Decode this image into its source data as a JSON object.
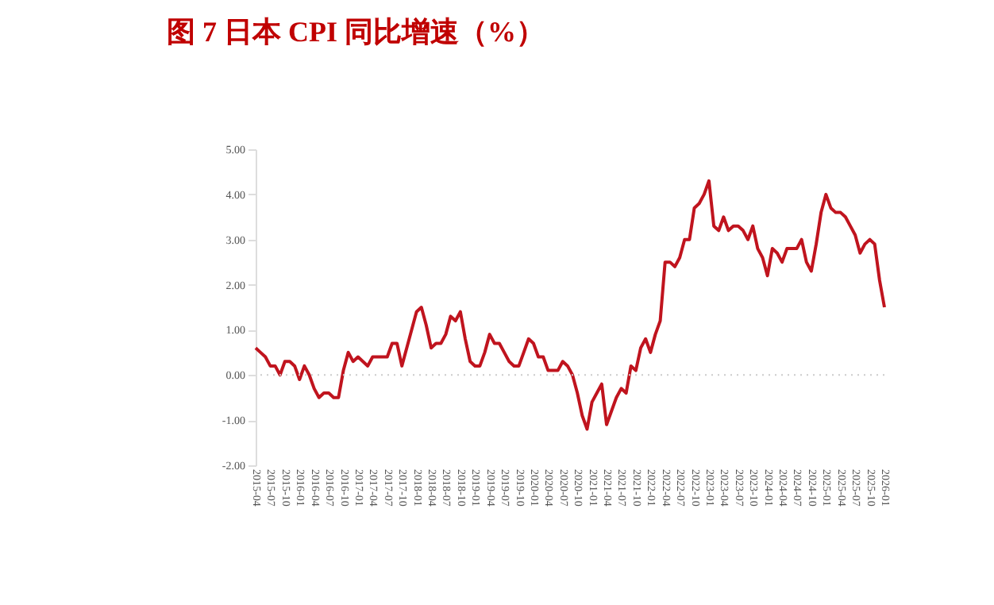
{
  "chart_data": {
    "type": "line",
    "title": "图 7  日本 CPI 同比增速（%）",
    "categories": [
      "2015-04",
      null,
      null,
      "2015-07",
      null,
      null,
      "2015-10",
      null,
      null,
      "2016-01",
      null,
      null,
      "2016-04",
      null,
      null,
      "2016-07",
      null,
      null,
      "2016-10",
      null,
      null,
      "2017-01",
      null,
      null,
      "2017-04",
      null,
      null,
      "2017-07",
      null,
      null,
      "2017-10",
      null,
      null,
      "2018-01",
      null,
      null,
      "2018-04",
      null,
      null,
      "2018-07",
      null,
      null,
      "2018-10",
      null,
      null,
      "2019-01",
      null,
      null,
      "2019-04",
      null,
      null,
      "2019-07",
      null,
      null,
      "2019-10",
      null,
      null,
      "2020-01",
      null,
      null,
      "2020-04",
      null,
      null,
      "2020-07",
      null,
      null,
      "2020-10",
      null,
      null,
      "2021-01",
      null,
      null,
      "2021-04",
      null,
      null,
      "2021-07",
      null,
      null,
      "2021-10",
      null,
      null,
      "2022-01",
      null,
      null,
      "2022-04",
      null,
      null,
      "2022-07",
      null,
      null,
      "2022-10",
      null,
      null,
      "2023-01",
      null,
      null,
      "2023-04",
      null,
      null,
      "2023-07",
      null,
      null,
      "2023-10",
      null,
      null,
      "2024-01",
      null,
      null,
      "2024-04",
      null,
      null,
      "2024-07",
      null,
      null,
      "2024-10",
      null,
      null,
      "2025-01",
      null,
      null,
      "2025-04",
      null,
      null,
      "2025-07",
      null,
      null,
      "2025-10",
      null,
      null,
      "2026-01"
    ],
    "series": [
      {
        "color": "#c0141e",
        "values": [
          0.6,
          0.5,
          0.4,
          0.2,
          0.2,
          0.0,
          0.3,
          0.3,
          0.2,
          -0.1,
          0.2,
          0.0,
          -0.3,
          -0.5,
          -0.4,
          -0.4,
          -0.5,
          -0.5,
          0.1,
          0.5,
          0.3,
          0.4,
          0.3,
          0.2,
          0.4,
          0.4,
          0.4,
          0.4,
          0.7,
          0.7,
          0.2,
          0.6,
          1.0,
          1.4,
          1.5,
          1.1,
          0.6,
          0.7,
          0.7,
          0.9,
          1.3,
          1.2,
          1.4,
          0.8,
          0.3,
          0.2,
          0.2,
          0.5,
          0.9,
          0.7,
          0.7,
          0.5,
          0.3,
          0.2,
          0.2,
          0.5,
          0.8,
          0.7,
          0.4,
          0.4,
          0.1,
          0.1,
          0.1,
          0.3,
          0.2,
          0.0,
          -0.4,
          -0.9,
          -1.2,
          -0.6,
          -0.4,
          -0.2,
          -1.1,
          -0.8,
          -0.5,
          -0.3,
          -0.4,
          0.2,
          0.1,
          0.6,
          0.8,
          0.5,
          0.9,
          1.2,
          2.5,
          2.5,
          2.4,
          2.6,
          3.0,
          3.0,
          3.7,
          3.8,
          4.0,
          4.3,
          3.3,
          3.2,
          3.5,
          3.2,
          3.3,
          3.3,
          3.2,
          3.0,
          3.3,
          2.8,
          2.6,
          2.2,
          2.8,
          2.7,
          2.5,
          2.8,
          2.8,
          2.8,
          3.0,
          2.5,
          2.3,
          2.9,
          3.6,
          4.0,
          3.7,
          3.6,
          3.6,
          3.5,
          3.3,
          3.1,
          2.7,
          2.9,
          3.0,
          2.9,
          2.1,
          1.5
        ]
      }
    ],
    "ylim": [
      -2,
      5
    ],
    "yticks": [
      {
        "value": -2,
        "label": "-2.00"
      },
      {
        "value": -1,
        "label": "-1.00"
      },
      {
        "value": 0,
        "label": "0.00"
      },
      {
        "value": 1,
        "label": "1.00"
      },
      {
        "value": 2,
        "label": "2.00"
      },
      {
        "value": 3,
        "label": "3.00"
      },
      {
        "value": 4,
        "label": "4.00"
      },
      {
        "value": 5,
        "label": "5.00"
      }
    ],
    "ref_lines": [
      {
        "axis": "y",
        "value": 0,
        "color": "#cccccc",
        "line_style": "dotted"
      }
    ],
    "grid": false
  }
}
